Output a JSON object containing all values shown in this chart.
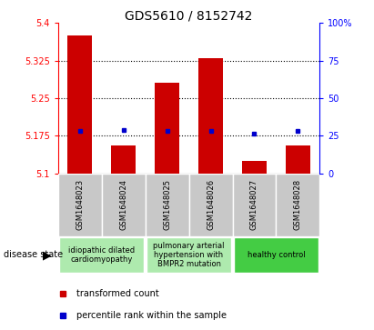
{
  "title": "GDS5610 / 8152742",
  "samples": [
    "GSM1648023",
    "GSM1648024",
    "GSM1648025",
    "GSM1648026",
    "GSM1648027",
    "GSM1648028"
  ],
  "red_values": [
    5.375,
    5.155,
    5.28,
    5.33,
    5.125,
    5.155
  ],
  "blue_values": [
    5.185,
    5.187,
    5.185,
    5.185,
    5.179,
    5.184
  ],
  "ylim": [
    5.1,
    5.4
  ],
  "yticks": [
    5.1,
    5.175,
    5.25,
    5.325,
    5.4
  ],
  "ytick_labels": [
    "5.1",
    "5.175",
    "5.25",
    "5.325",
    "5.4"
  ],
  "y2lim": [
    0,
    100
  ],
  "y2ticks": [
    0,
    25,
    50,
    75,
    100
  ],
  "y2tick_labels": [
    "0",
    "25",
    "50",
    "75",
    "100%"
  ],
  "baseline": 5.1,
  "dotted_lines": [
    5.175,
    5.25,
    5.325
  ],
  "groups": [
    {
      "label": "idiopathic dilated\ncardiomyopathy",
      "start": 0,
      "end": 2,
      "color": "#aeeaae"
    },
    {
      "label": "pulmonary arterial\nhypertension with\nBMPR2 mutation",
      "start": 2,
      "end": 4,
      "color": "#aeeaae"
    },
    {
      "label": "healthy control",
      "start": 4,
      "end": 6,
      "color": "#44cc44"
    }
  ],
  "bar_color": "#cc0000",
  "dot_color": "#0000cc",
  "bar_width": 0.55,
  "title_fontsize": 10,
  "tick_fontsize": 7,
  "sample_fontsize": 6,
  "group_fontsize": 6,
  "legend_fontsize": 7,
  "sample_box_color": "#c8c8c8",
  "disease_state_label": "disease state",
  "legend_red_label": "transformed count",
  "legend_blue_label": "percentile rank within the sample"
}
